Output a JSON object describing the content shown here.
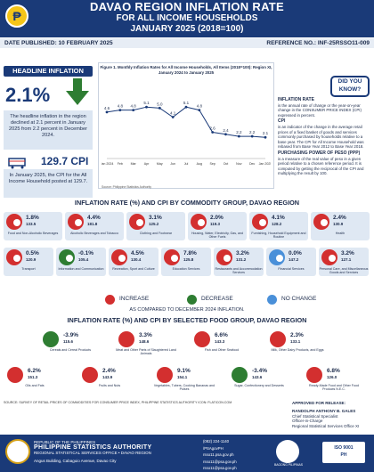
{
  "header": {
    "title": "DAVAO REGION INFLATION RATE",
    "subtitle1": "FOR ALL INCOME HOUSEHOLDS",
    "subtitle2": "JANUARY 2025 (2018=100)",
    "peso_symbol": "₱"
  },
  "infobar": {
    "date_published": "DATE PUBLISHED: 10 FEBRUARY 2025",
    "reference_no": "REFERENCE NO.: INF-25RSSO11-009"
  },
  "headline": {
    "label": "HEADLINE INFLATION",
    "value": "2.1%",
    "description": "The headline inflation in the region declined at 2.1 percent in January 2025 from 2.2 percent in December 2024.",
    "cpi_value": "129.7 CPI",
    "cpi_description": "In January 2025, the CPI for the All Income Household posted at 129.7."
  },
  "chart_data": {
    "type": "line",
    "title": "Figure 1. Monthly Inflation Rates for All Income Households, All Items (2018=100): Region XI, January 2024 to January 2025",
    "categories": [
      "Jan 2024",
      "Feb",
      "Mar",
      "Apr",
      "May",
      "Jun",
      "Jul",
      "Aug",
      "Sep",
      "Oct",
      "Nov",
      "Dec",
      "Jan 2025"
    ],
    "values": [
      4.6,
      4.8,
      4.8,
      5.1,
      5.0,
      4.1,
      5.1,
      4.8,
      2.6,
      2.4,
      2.2,
      2.2,
      2.1
    ],
    "ylim": [
      0,
      6
    ],
    "source": "Source: Philippine Statistics Authority"
  },
  "did_you_know": {
    "line1": "DID YOU",
    "line2": "KNOW?"
  },
  "definitions": [
    {
      "term": "INFLATION RATE",
      "text": "is the annual rate of change or the year-on-year change in the CONSUMER PRICE INDEX (CPI) expressed in percent."
    },
    {
      "term": "CPI",
      "text": "is an indicator of the change in the average retail prices of a fixed basket of goods and services commonly purchased by households relative to a base year. The CPI for All Income Household was rebased from Base Year 2012 to Base Year 2018."
    },
    {
      "term": "PURCHASING POWER OF PESO (PPP)",
      "text": "is a measure of the real value of peso in a given period relative to a chosen reference period. It is computed by getting the reciprocal of the CPI and multiplying the result by 100."
    }
  ],
  "commodity_section_title": "INFLATION RATE (%) AND CPI BY COMMODITY GROUP, DAVAO REGION",
  "commodities": [
    {
      "rate": "1.8%",
      "cpi": "133.5",
      "label": "Food and Non-Alcoholic Beverages",
      "status": "up"
    },
    {
      "rate": "4.4%",
      "cpi": "181.8",
      "label": "Alcoholic Beverages and Tobacco",
      "status": "up"
    },
    {
      "rate": "3.1%",
      "cpi": "125.2",
      "label": "Clothing and Footwear",
      "status": "up"
    },
    {
      "rate": "2.0%",
      "cpi": "119.3",
      "label": "Housing, Water, Electricity, Gas, and Other Fuels",
      "status": "up"
    },
    {
      "rate": "4.1%",
      "cpi": "128.2",
      "label": "Furnishing, Household Equipment and Routine",
      "status": "up"
    },
    {
      "rate": "2.4%",
      "cpi": "130.9",
      "label": "Health",
      "status": "up"
    },
    {
      "rate": "0.5%",
      "cpi": "120.9",
      "label": "Transport",
      "status": "up"
    },
    {
      "rate": "-0.1%",
      "cpi": "105.4",
      "label": "Information and Communication",
      "status": "down"
    },
    {
      "rate": "4.5%",
      "cpi": "130.4",
      "label": "Recreation, Sport and Culture",
      "status": "up"
    },
    {
      "rate": "7.8%",
      "cpi": "125.8",
      "label": "Education Services",
      "status": "up"
    },
    {
      "rate": "3.2%",
      "cpi": "131.2",
      "label": "Restaurants and Accommodation Services",
      "status": "up"
    },
    {
      "rate": "0.0%",
      "cpi": "147.2",
      "label": "Financial Services",
      "status": "same"
    },
    {
      "rate": "3.2%",
      "cpi": "127.1",
      "label": "Personal Care, and Miscellaneous Goods and Services",
      "status": "up"
    }
  ],
  "legend": {
    "increase": "INCREASE",
    "decrease": "DECREASE",
    "no_change": "NO CHANGE",
    "compared": "AS COMPARED TO DECEMBER 2024 INFLATION."
  },
  "food_section_title": "INFLATION RATE (%) AND CPI BY SELECTED FOOD GROUP, DAVAO REGION",
  "foods": [
    {
      "rate": "-3.9%",
      "cpi": "115.6",
      "label": "Cereals and Cereal Products",
      "status": "down"
    },
    {
      "rate": "3.3%",
      "cpi": "148.6",
      "label": "Meat and Other Parts of Slaughtered Land Animals",
      "status": "up"
    },
    {
      "rate": "6.6%",
      "cpi": "143.3",
      "label": "Fish and Other Seafood",
      "status": "up"
    },
    {
      "rate": "2.3%",
      "cpi": "133.1",
      "label": "Milk, Other Dairy Products, and Eggs",
      "status": "up"
    },
    {
      "rate": "6.2%",
      "cpi": "151.3",
      "label": "Oils and Fats",
      "status": "up"
    },
    {
      "rate": "2.4%",
      "cpi": "143.9",
      "label": "Fruits and Nuts",
      "status": "up"
    },
    {
      "rate": "9.1%",
      "cpi": "154.1",
      "label": "Vegetables, Tubers, Cooking Bananas and Pulses",
      "status": "up"
    },
    {
      "rate": "-3.4%",
      "cpi": "143.6",
      "label": "Sugar, Confectionery and Desserts",
      "status": "down"
    },
    {
      "rate": "6.8%",
      "cpi": "126.0",
      "label": "Ready-Made Food and Other Food Products N.E.C.",
      "status": "up"
    }
  ],
  "source_note": "SOURCE: SURVEY OF RETAIL PRICES OF COMMODITIES FOR CONSUMER PRICE INDEX, PHILIPPINE STATISTICS AUTHORITY ICON: FLATICON.COM",
  "approval": {
    "label": "APPROVED FOR RELEASE:",
    "name": "RANDOLPH ANTHONY B. GALES",
    "position1": "Chief Statistical Specialist",
    "position2": "Officer-in-Charge",
    "office": "Regional Statistical Services Office XI"
  },
  "footer": {
    "republic": "REPUBLIC OF THE PHILIPPINES",
    "psa": "PHILIPPINE STATISTICS AUTHORITY",
    "office": "REGIONAL STATISTICAL SERVICES OFFICE • DAVAO REGION",
    "address": "Angus Building, Cabaguio Avenue, Davao City",
    "phone": "(082) 224-1140",
    "social": "/PSAgovPH",
    "website": "rsso11.psa.gov.ph",
    "email1": "rsso11@psa.gov.ph",
    "email2": "rsso11@psa.gov.ph",
    "bagong": "BAGONG PILIPINAS",
    "iso": "ISO 9001",
    "ph": "PH"
  }
}
